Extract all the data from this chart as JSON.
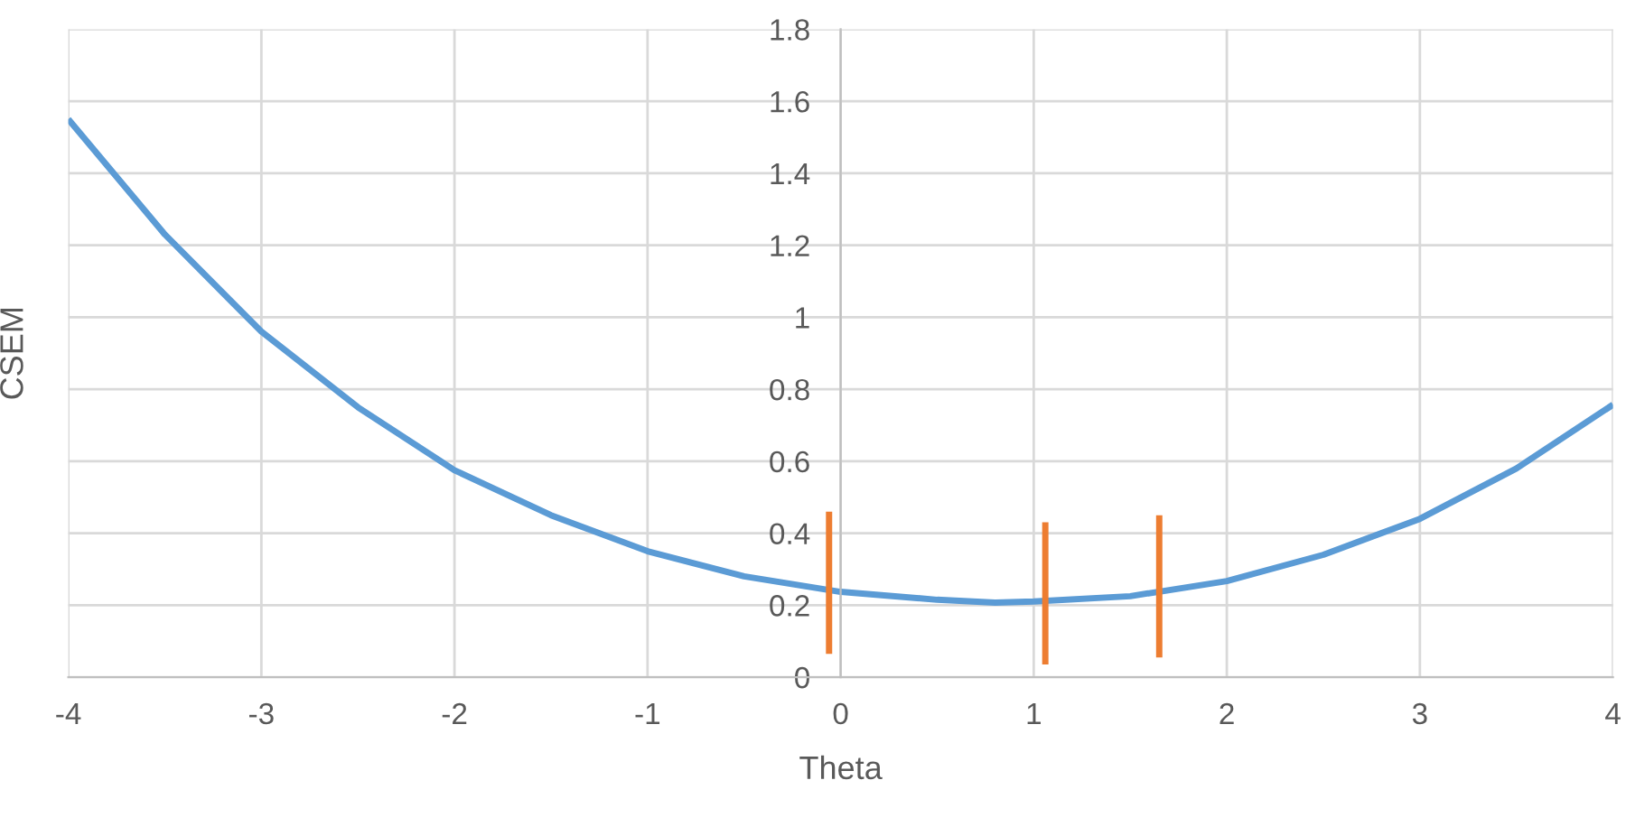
{
  "chart_data": {
    "type": "line",
    "xlabel": "Theta",
    "ylabel": "CSEM",
    "xlim": [
      -4,
      4
    ],
    "xticks": [
      -4,
      -3,
      -2,
      -1,
      0,
      1,
      2,
      3,
      4
    ],
    "ylim": [
      0,
      1.8
    ],
    "yticks": [
      0,
      0.2,
      0.4,
      0.6,
      0.8,
      1,
      1.2,
      1.4,
      1.6,
      1.8
    ],
    "grid": true,
    "legend": false,
    "series": [
      {
        "color": "#5b9bd5",
        "x": [
          -4,
          -3.5,
          -3,
          -2.5,
          -2,
          -1.5,
          -1,
          -0.5,
          0,
          0.5,
          0.8,
          1,
          1.5,
          2,
          2.5,
          3,
          3.5,
          4
        ],
        "values": [
          1.55,
          1.23,
          0.96,
          0.75,
          0.575,
          0.45,
          0.35,
          0.28,
          0.237,
          0.215,
          0.207,
          0.21,
          0.225,
          0.267,
          0.34,
          0.44,
          0.58,
          0.757
        ]
      },
      {
        "color": "#ed7d31",
        "x": [
          -0.06,
          -0.06
        ],
        "values": [
          0.065,
          0.46
        ]
      },
      {
        "color": "#ed7d31",
        "x": [
          1.06,
          1.06
        ],
        "values": [
          0.035,
          0.43
        ]
      },
      {
        "color": "#ed7d31",
        "x": [
          1.65,
          1.65
        ],
        "values": [
          0.055,
          0.45
        ]
      }
    ]
  }
}
